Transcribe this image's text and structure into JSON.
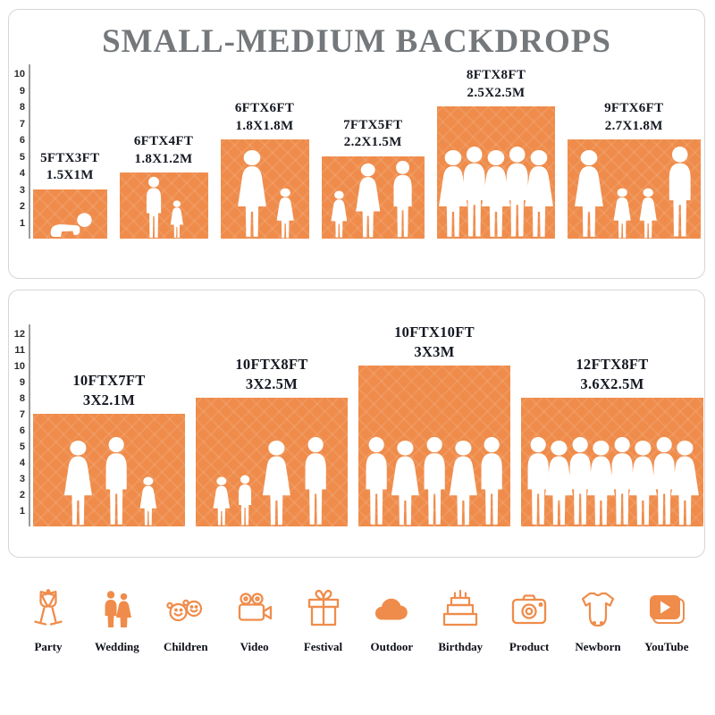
{
  "title": "SMALL-MEDIUM BACKDROPS",
  "colors": {
    "accent": "#EF8C4B",
    "title_gray": "#75787B",
    "label_dark": "#141821"
  },
  "top_panel": {
    "ruler_max": 10,
    "bars": [
      {
        "size_ft": "5FTX3FT",
        "size_m": "1.5X1M",
        "w_ft": 5,
        "h_ft": 3,
        "people": [
          "baby"
        ]
      },
      {
        "size_ft": "6FTX4FT",
        "size_m": "1.8X1.2M",
        "w_ft": 6,
        "h_ft": 4,
        "people": [
          "man",
          "girl"
        ]
      },
      {
        "size_ft": "6FTX6FT",
        "size_m": "1.8X1.8M",
        "w_ft": 6,
        "h_ft": 6,
        "people": [
          "woman",
          "girl"
        ]
      },
      {
        "size_ft": "7FTX5FT",
        "size_m": "2.2X1.5M",
        "w_ft": 7,
        "h_ft": 5,
        "people": [
          "girl",
          "woman",
          "man"
        ]
      },
      {
        "size_ft": "8FTX8FT",
        "size_m": "2.5X2.5M",
        "w_ft": 8,
        "h_ft": 8,
        "people": [
          "woman",
          "man",
          "woman",
          "man",
          "woman"
        ]
      },
      {
        "size_ft": "9FTX6FT",
        "size_m": "2.7X1.8M",
        "w_ft": 9,
        "h_ft": 6,
        "people": [
          "woman",
          "girl",
          "girl",
          "man"
        ]
      }
    ]
  },
  "bottom_panel": {
    "ruler_max": 12,
    "bars": [
      {
        "size_ft": "10FTX7FT",
        "size_m": "3X2.1M",
        "w_ft": 10,
        "h_ft": 7,
        "people": [
          "woman",
          "man",
          "girl"
        ]
      },
      {
        "size_ft": "10FTX8FT",
        "size_m": "3X2.5M",
        "w_ft": 10,
        "h_ft": 8,
        "people": [
          "girl",
          "boy",
          "woman",
          "man"
        ]
      },
      {
        "size_ft": "10FTX10FT",
        "size_m": "3X3M",
        "w_ft": 10,
        "h_ft": 10,
        "people": [
          "man",
          "woman",
          "man",
          "woman",
          "man"
        ]
      },
      {
        "size_ft": "12FTX8FT",
        "size_m": "3.6X2.5M",
        "w_ft": 12,
        "h_ft": 8,
        "people": [
          "man",
          "woman",
          "man",
          "woman",
          "man",
          "woman",
          "man",
          "woman"
        ]
      }
    ]
  },
  "categories": [
    {
      "label": "Party",
      "icon": "party-icon"
    },
    {
      "label": "Wedding",
      "icon": "wedding-icon"
    },
    {
      "label": "Children",
      "icon": "children-icon"
    },
    {
      "label": "Video",
      "icon": "video-icon"
    },
    {
      "label": "Festival",
      "icon": "festival-icon"
    },
    {
      "label": "Outdoor",
      "icon": "outdoor-icon"
    },
    {
      "label": "Birthday",
      "icon": "birthday-icon"
    },
    {
      "label": "Product",
      "icon": "product-icon"
    },
    {
      "label": "Newborn",
      "icon": "newborn-icon"
    },
    {
      "label": "YouTube",
      "icon": "youtube-icon"
    }
  ]
}
